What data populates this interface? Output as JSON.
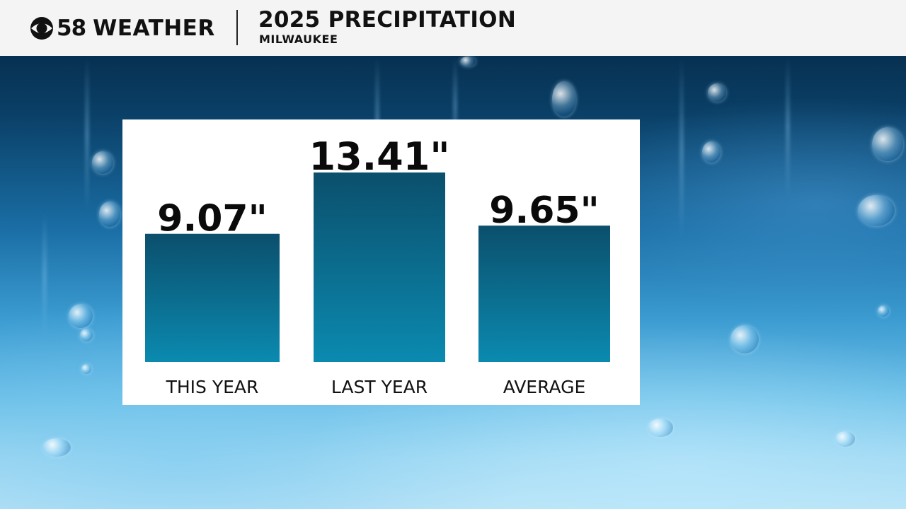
{
  "header": {
    "logo_number": "58",
    "logo_word": "WEATHER",
    "title": "2025 PRECIPITATION",
    "subtitle": "MILWAUKEE"
  },
  "chart_data": {
    "type": "bar",
    "title": "",
    "xlabel": "",
    "ylabel": "",
    "unit": "inches",
    "ylim": [
      0,
      15
    ],
    "grid": false,
    "categories": [
      "THIS YEAR",
      "LAST YEAR",
      "AVERAGE"
    ],
    "values": [
      9.07,
      13.41,
      9.65
    ],
    "value_labels": [
      "9.07\"",
      "13.41\"",
      "9.65\""
    ],
    "colors": {
      "bar_top": "#0b4f6c",
      "bar_bottom": "#0b8ab0"
    }
  }
}
